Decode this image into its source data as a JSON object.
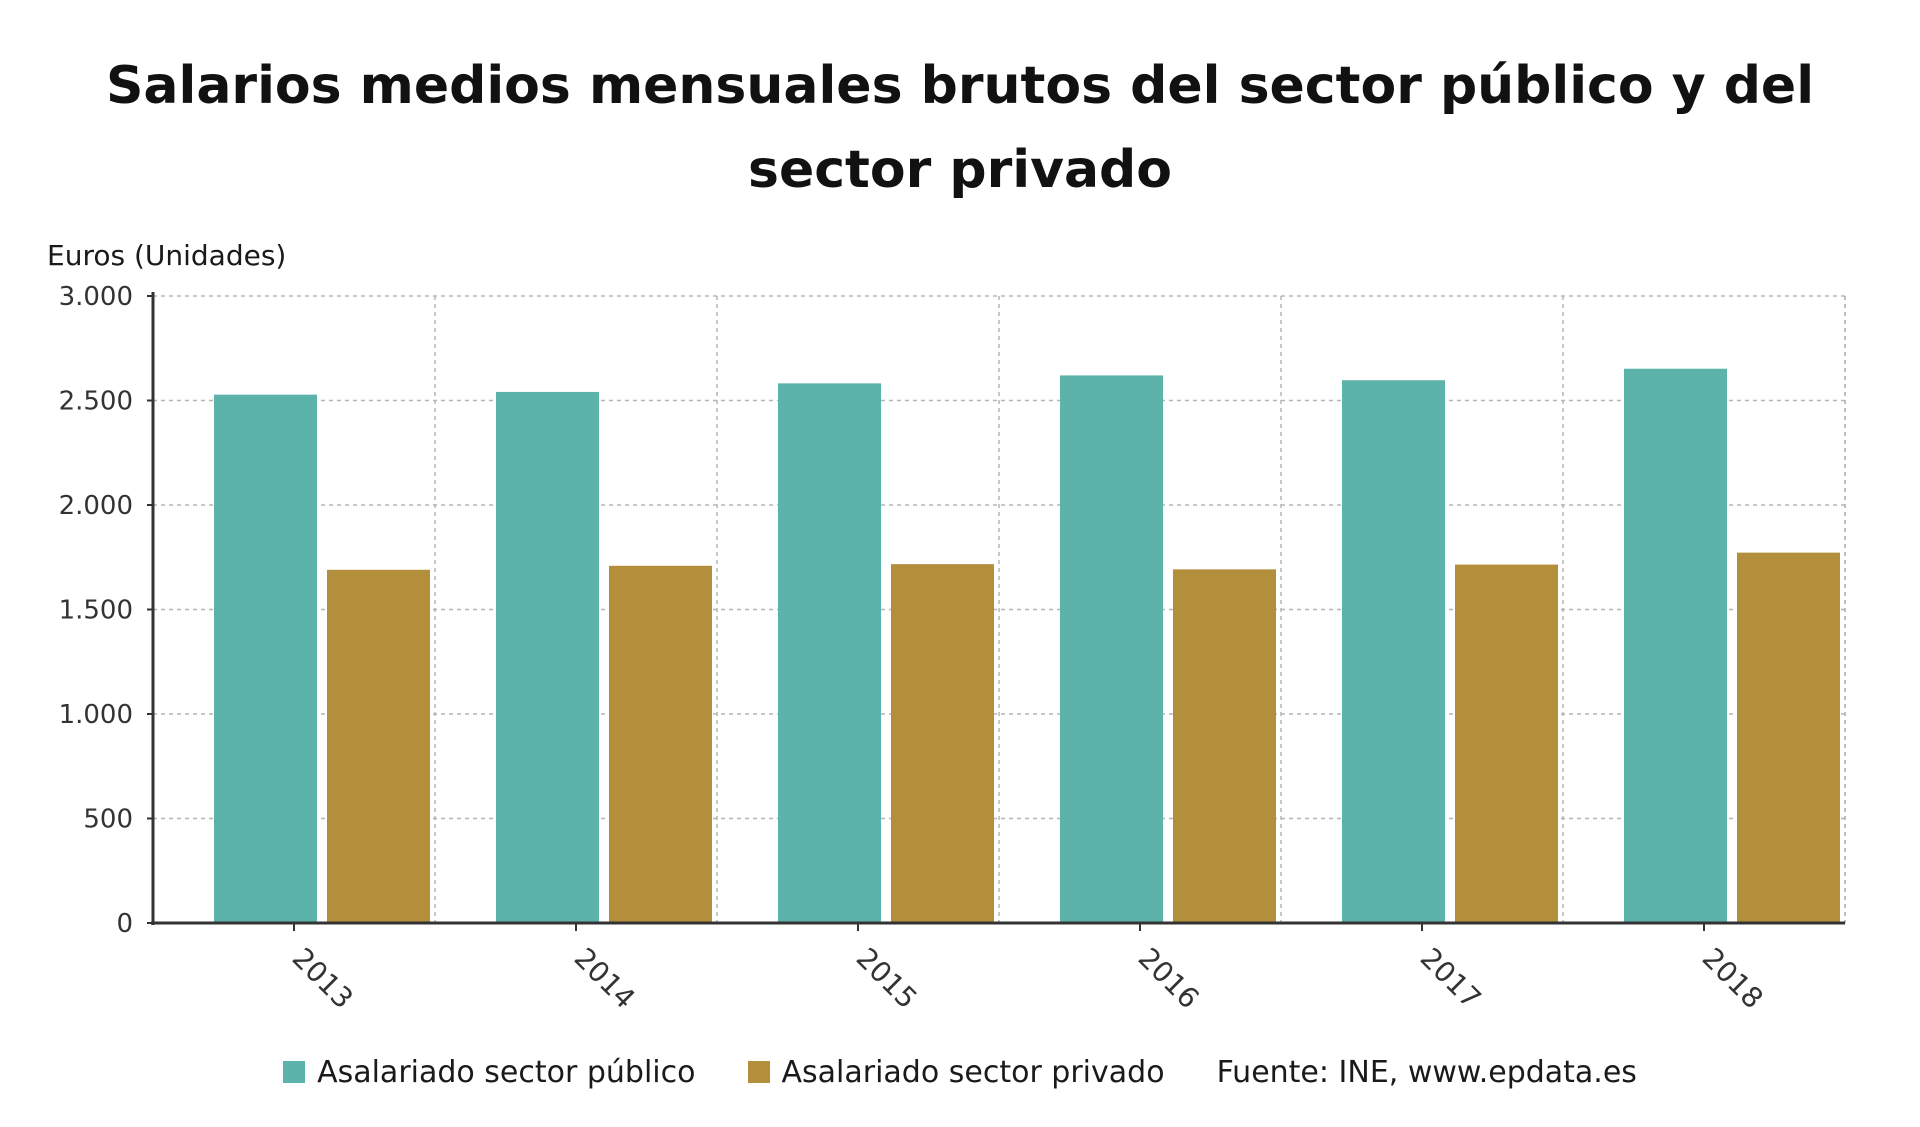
{
  "chart_data": {
    "type": "bar",
    "title": "Salarios medios mensuales brutos del sector público y del sector privado",
    "ylabel": "Euros (Unidades)",
    "xlabel": "",
    "ylim": [
      0,
      3000
    ],
    "yticks": [
      0,
      500,
      1000,
      1500,
      2000,
      2500,
      3000
    ],
    "ytick_labels": [
      "0",
      "500",
      "1.000",
      "1.500",
      "2.000",
      "2.500",
      "3.000"
    ],
    "categories": [
      "2013",
      "2014",
      "2015",
      "2016",
      "2017",
      "2018"
    ],
    "series": [
      {
        "name": "Asalariado sector público",
        "color": "#5cb3aa",
        "values": [
          2528,
          2541,
          2582,
          2620,
          2597,
          2652
        ]
      },
      {
        "name": "Asalariado sector privado",
        "color": "#b38e3b",
        "values": [
          1690,
          1709,
          1717,
          1692,
          1715,
          1772
        ]
      }
    ],
    "grid": true,
    "legend_position": "bottom",
    "source": "Fuente: INE, www.epdata.es"
  }
}
